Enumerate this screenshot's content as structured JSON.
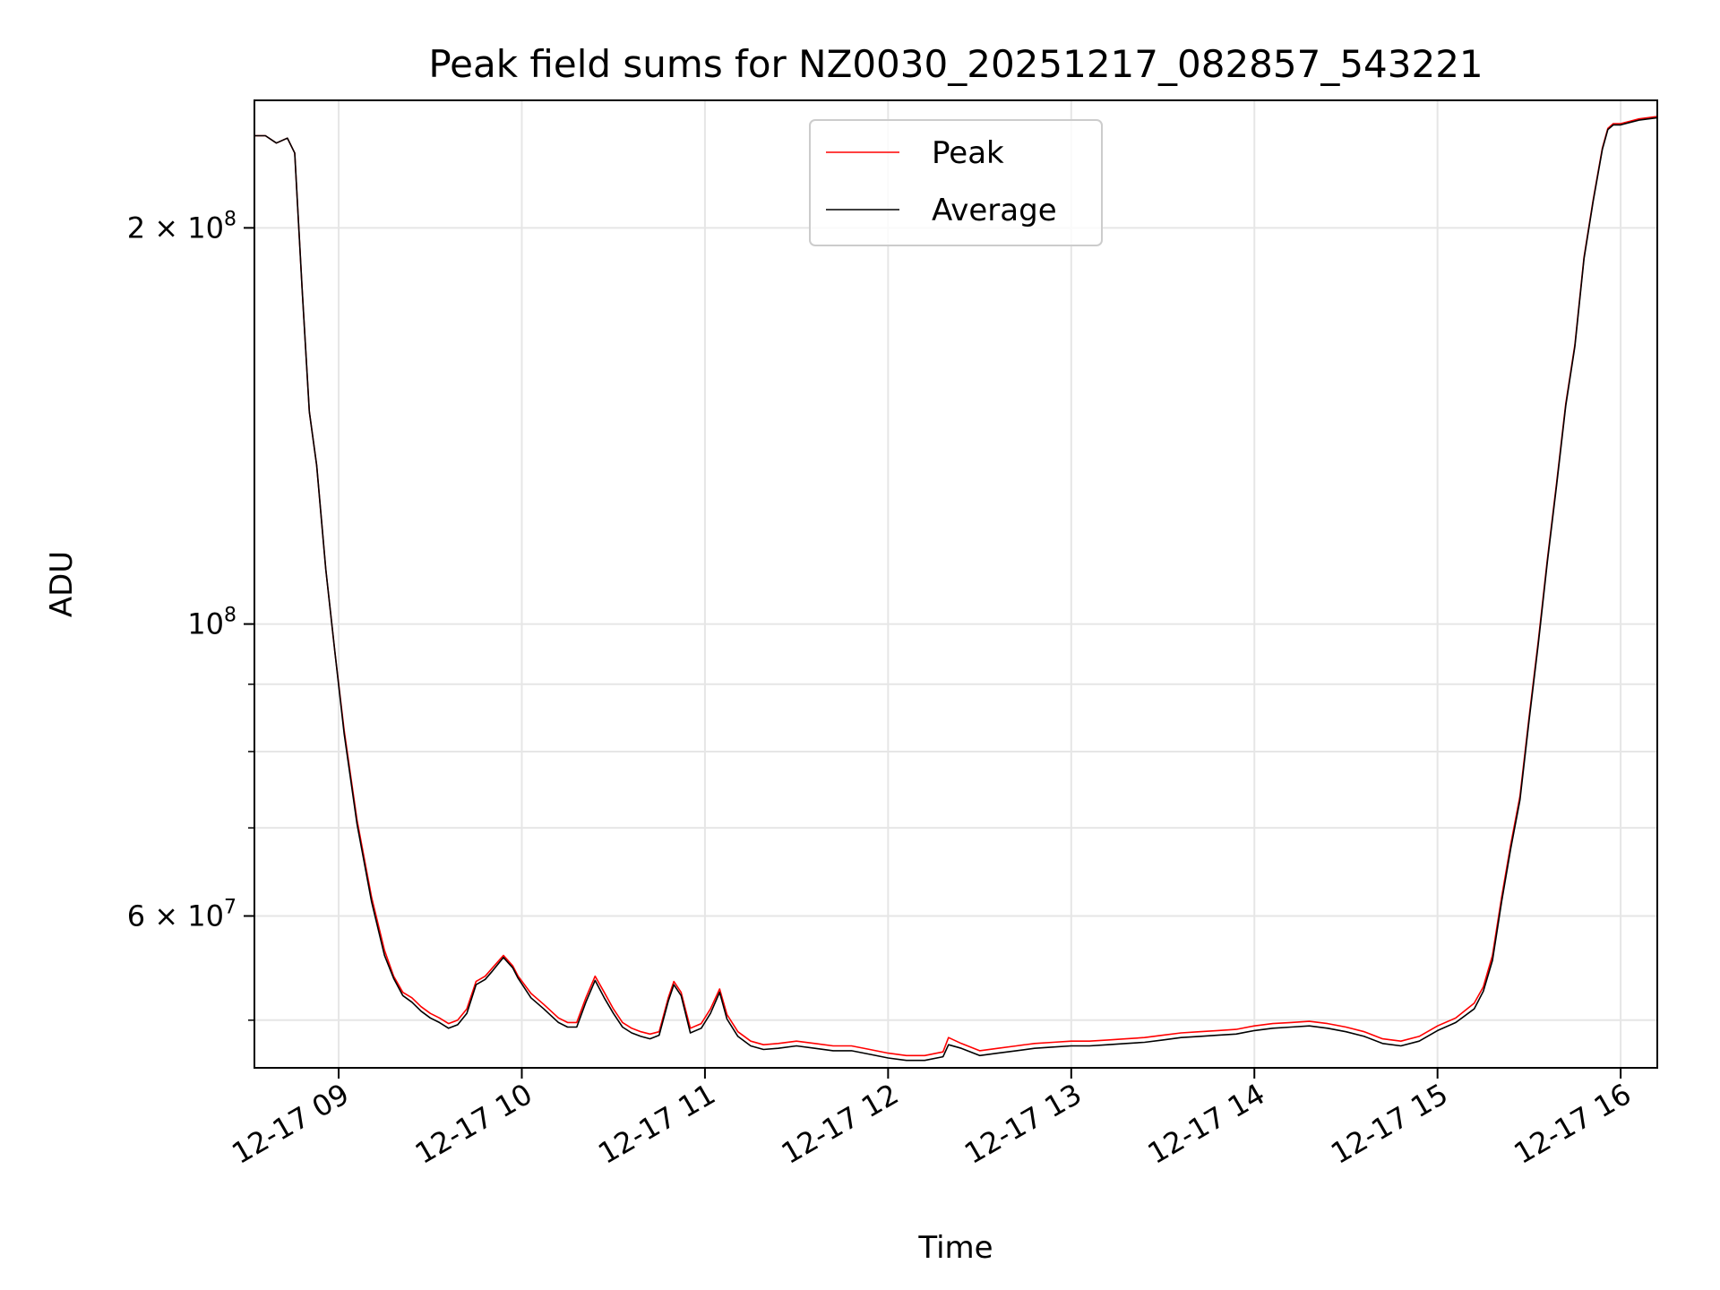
{
  "chart_data": {
    "type": "line",
    "title": "Peak field sums for NZ0030_20251217_082857_543221",
    "xlabel": "Time",
    "ylabel": "ADU",
    "xlim": [
      8.54,
      16.2
    ],
    "ylim": [
      46000000,
      250000000
    ],
    "yscale": "log",
    "grid": true,
    "legend_position": "top-center",
    "x_ticks": [
      {
        "value": 9,
        "label": "12-17 09"
      },
      {
        "value": 10,
        "label": "12-17 10"
      },
      {
        "value": 11,
        "label": "12-17 11"
      },
      {
        "value": 12,
        "label": "12-17 12"
      },
      {
        "value": 13,
        "label": "12-17 13"
      },
      {
        "value": 14,
        "label": "12-17 14"
      },
      {
        "value": 15,
        "label": "12-17 15"
      },
      {
        "value": 16,
        "label": "12-17 16"
      }
    ],
    "y_major_ticks": [
      {
        "value": 60000000,
        "mantissa": "6",
        "exponent": "7"
      },
      {
        "value": 100000000,
        "mantissa": "",
        "exponent": "8"
      },
      {
        "value": 200000000,
        "mantissa": "2",
        "exponent": "8"
      }
    ],
    "y_minor_ticks": [
      50000000,
      70000000,
      80000000,
      90000000
    ],
    "series": [
      {
        "name": "Peak",
        "color": "#ff0000",
        "x": [
          8.54,
          8.6,
          8.66,
          8.72,
          8.76,
          8.8,
          8.84,
          8.88,
          8.93,
          8.98,
          9.03,
          9.1,
          9.18,
          9.25,
          9.3,
          9.35,
          9.4,
          9.45,
          9.5,
          9.55,
          9.6,
          9.65,
          9.7,
          9.75,
          9.8,
          9.84,
          9.9,
          9.95,
          9.98,
          10.05,
          10.12,
          10.2,
          10.25,
          10.3,
          10.35,
          10.4,
          10.45,
          10.5,
          10.55,
          10.6,
          10.65,
          10.7,
          10.75,
          10.8,
          10.83,
          10.87,
          10.92,
          10.98,
          11.03,
          11.08,
          11.12,
          11.18,
          11.25,
          11.32,
          11.4,
          11.5,
          11.6,
          11.7,
          11.8,
          11.9,
          12.0,
          12.1,
          12.2,
          12.3,
          12.33,
          12.4,
          12.5,
          12.6,
          12.7,
          12.8,
          12.9,
          13.0,
          13.1,
          13.2,
          13.3,
          13.4,
          13.5,
          13.6,
          13.7,
          13.8,
          13.9,
          14.0,
          14.1,
          14.2,
          14.3,
          14.4,
          14.5,
          14.6,
          14.7,
          14.8,
          14.9,
          15.0,
          15.1,
          15.2,
          15.25,
          15.3,
          15.35,
          15.4,
          15.45,
          15.5,
          15.55,
          15.6,
          15.65,
          15.7,
          15.75,
          15.8,
          15.85,
          15.9,
          15.93,
          15.96,
          16.0,
          16.05,
          16.1,
          16.2
        ],
        "y": [
          235000000,
          235000000,
          232000000,
          234000000,
          228000000,
          180000000,
          145000000,
          132000000,
          110000000,
          95000000,
          83000000,
          71000000,
          62000000,
          56500000,
          54000000,
          52500000,
          52000000,
          51200000,
          50600000,
          50200000,
          49700000,
          50000000,
          51000000,
          53500000,
          54000000,
          54800000,
          56000000,
          55000000,
          54000000,
          52400000,
          51400000,
          50200000,
          49800000,
          49800000,
          52000000,
          54000000,
          52500000,
          51000000,
          49800000,
          49300000,
          49000000,
          48800000,
          49000000,
          52000000,
          53500000,
          52500000,
          49300000,
          49700000,
          51000000,
          52800000,
          50500000,
          49000000,
          48200000,
          47900000,
          48000000,
          48200000,
          48000000,
          47800000,
          47800000,
          47500000,
          47200000,
          47000000,
          47000000,
          47300000,
          48500000,
          48000000,
          47400000,
          47600000,
          47800000,
          48000000,
          48100000,
          48200000,
          48200000,
          48300000,
          48400000,
          48500000,
          48700000,
          48900000,
          49000000,
          49100000,
          49200000,
          49500000,
          49700000,
          49800000,
          49900000,
          49700000,
          49400000,
          49000000,
          48400000,
          48200000,
          48600000,
          49500000,
          50200000,
          51500000,
          53000000,
          56000000,
          62000000,
          68000000,
          74000000,
          85000000,
          97000000,
          112000000,
          128000000,
          147000000,
          163000000,
          190000000,
          210000000,
          230000000,
          238000000,
          240000000,
          240000000,
          241000000,
          242000000,
          243000000
        ]
      },
      {
        "name": "Average",
        "color": "#000000",
        "x": [
          8.54,
          8.6,
          8.66,
          8.72,
          8.76,
          8.8,
          8.84,
          8.88,
          8.93,
          8.98,
          9.03,
          9.1,
          9.18,
          9.25,
          9.3,
          9.35,
          9.4,
          9.45,
          9.5,
          9.55,
          9.6,
          9.65,
          9.7,
          9.75,
          9.8,
          9.84,
          9.9,
          9.95,
          9.98,
          10.05,
          10.12,
          10.2,
          10.25,
          10.3,
          10.35,
          10.4,
          10.45,
          10.5,
          10.55,
          10.6,
          10.65,
          10.7,
          10.75,
          10.8,
          10.83,
          10.87,
          10.92,
          10.98,
          11.03,
          11.08,
          11.12,
          11.18,
          11.25,
          11.32,
          11.4,
          11.5,
          11.6,
          11.7,
          11.8,
          11.9,
          12.0,
          12.1,
          12.2,
          12.3,
          12.33,
          12.4,
          12.5,
          12.6,
          12.7,
          12.8,
          12.9,
          13.0,
          13.1,
          13.2,
          13.3,
          13.4,
          13.5,
          13.6,
          13.7,
          13.8,
          13.9,
          14.0,
          14.1,
          14.2,
          14.3,
          14.4,
          14.5,
          14.6,
          14.7,
          14.8,
          14.9,
          15.0,
          15.1,
          15.2,
          15.25,
          15.3,
          15.35,
          15.4,
          15.45,
          15.5,
          15.55,
          15.6,
          15.65,
          15.7,
          15.75,
          15.8,
          15.85,
          15.9,
          15.93,
          15.96,
          16.0,
          16.05,
          16.1,
          16.2
        ],
        "y": [
          235000000,
          235000000,
          232000000,
          234000000,
          228000000,
          180000000,
          145000000,
          132000000,
          110000000,
          95000000,
          82500000,
          70500000,
          61500000,
          56000000,
          53800000,
          52200000,
          51600000,
          50800000,
          50200000,
          49800000,
          49300000,
          49600000,
          50600000,
          53200000,
          53700000,
          54500000,
          55800000,
          54800000,
          53800000,
          52000000,
          51000000,
          49800000,
          49400000,
          49400000,
          51600000,
          53600000,
          52000000,
          50600000,
          49400000,
          48900000,
          48600000,
          48400000,
          48700000,
          51700000,
          53200000,
          52200000,
          48900000,
          49300000,
          50600000,
          52500000,
          50100000,
          48600000,
          47800000,
          47500000,
          47600000,
          47800000,
          47600000,
          47400000,
          47400000,
          47100000,
          46800000,
          46600000,
          46600000,
          46900000,
          47900000,
          47600000,
          47000000,
          47200000,
          47400000,
          47600000,
          47700000,
          47800000,
          47800000,
          47900000,
          48000000,
          48100000,
          48300000,
          48500000,
          48600000,
          48700000,
          48800000,
          49100000,
          49300000,
          49400000,
          49500000,
          49300000,
          49000000,
          48600000,
          48000000,
          47800000,
          48200000,
          49100000,
          49800000,
          51000000,
          52600000,
          55500000,
          61500000,
          67500000,
          73500000,
          84500000,
          96500000,
          111500000,
          127500000,
          146500000,
          162500000,
          189500000,
          209500000,
          229500000,
          237500000,
          239500000,
          239500000,
          240500000,
          241500000,
          242500000
        ]
      }
    ]
  }
}
